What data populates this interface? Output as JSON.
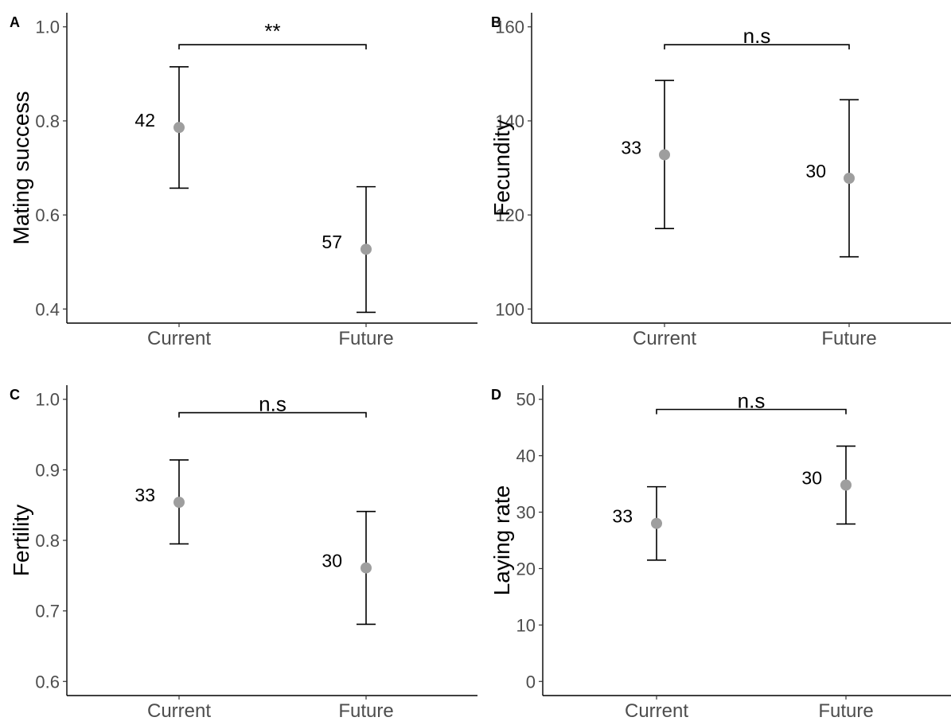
{
  "chart_data": [
    {
      "panel": "A",
      "type": "scatter",
      "ylabel": "Mating success",
      "categories": [
        "Current",
        "Future"
      ],
      "ylim": [
        0.37,
        1.03
      ],
      "yticks": [
        "0.4",
        "0.6",
        "0.8",
        "1.0"
      ],
      "points": [
        {
          "category": "Current",
          "mean": 0.786,
          "lower": 0.657,
          "upper": 0.915,
          "n": "42"
        },
        {
          "category": "Future",
          "mean": 0.527,
          "lower": 0.393,
          "upper": 0.66,
          "n": "57"
        }
      ],
      "significance": {
        "label": "**",
        "y": 0.962
      }
    },
    {
      "panel": "B",
      "type": "scatter",
      "ylabel": "Fecundity",
      "categories": [
        "Current",
        "Future"
      ],
      "ylim": [
        97,
        163
      ],
      "yticks": [
        "100",
        "120",
        "140",
        "160"
      ],
      "points": [
        {
          "category": "Current",
          "mean": 132.8,
          "lower": 117.1,
          "upper": 148.6,
          "n": "33"
        },
        {
          "category": "Future",
          "mean": 127.8,
          "lower": 111.1,
          "upper": 144.5,
          "n": "30"
        }
      ],
      "significance": {
        "label": "n.s",
        "y": 156.2
      }
    },
    {
      "panel": "C",
      "type": "scatter",
      "ylabel": "Fertility",
      "categories": [
        "Current",
        "Future"
      ],
      "ylim": [
        0.58,
        1.02
      ],
      "yticks": [
        "0.6",
        "0.7",
        "0.8",
        "0.9",
        "1.0"
      ],
      "points": [
        {
          "category": "Current",
          "mean": 0.854,
          "lower": 0.795,
          "upper": 0.914,
          "n": "33"
        },
        {
          "category": "Future",
          "mean": 0.761,
          "lower": 0.681,
          "upper": 0.841,
          "n": "30"
        }
      ],
      "significance": {
        "label": "n.s",
        "y": 0.981
      }
    },
    {
      "panel": "D",
      "type": "scatter",
      "ylabel": "Laying rate",
      "categories": [
        "Current",
        "Future"
      ],
      "ylim": [
        -2.5,
        52.5
      ],
      "yticks": [
        "0",
        "10",
        "20",
        "30",
        "40",
        "50"
      ],
      "points": [
        {
          "category": "Current",
          "mean": 28.0,
          "lower": 21.5,
          "upper": 34.5,
          "n": "33"
        },
        {
          "category": "Future",
          "mean": 34.8,
          "lower": 27.9,
          "upper": 41.7,
          "n": "30"
        }
      ],
      "significance": {
        "label": "n.s",
        "y": 48.2
      }
    }
  ]
}
